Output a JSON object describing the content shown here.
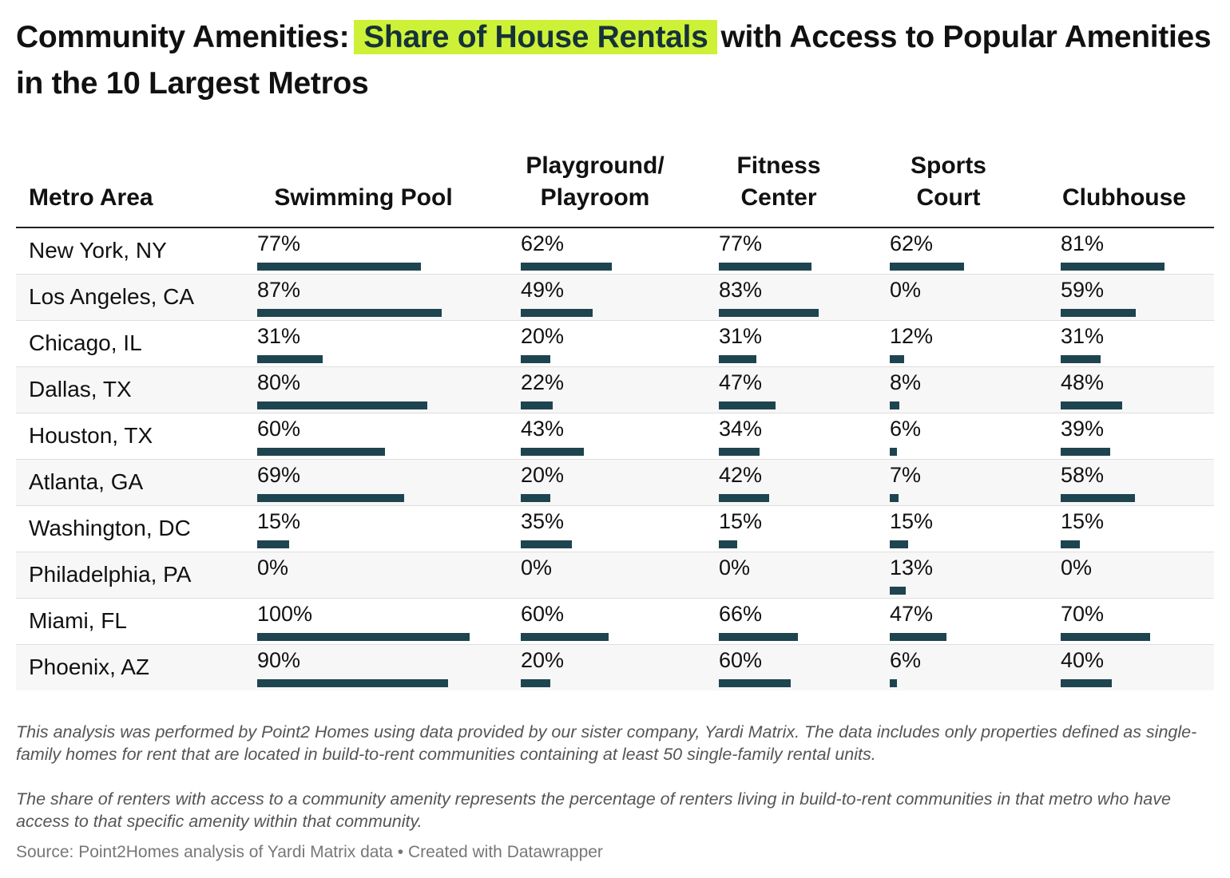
{
  "title": {
    "before": "Community Amenities:",
    "highlight": "Share of House Rentals",
    "after": "with Access to Popular Amenities in the 10 Largest Metros"
  },
  "colors": {
    "highlight": "#cdf136",
    "bar": "#1e4450"
  },
  "chart_data": {
    "type": "table",
    "columns": [
      "Metro Area",
      "Swimming Pool",
      "Playground/ Playroom",
      "Fitness Center",
      "Sports Court",
      "Clubhouse"
    ],
    "bar_scale_max": 100,
    "rows": [
      {
        "metro": "New York, NY",
        "values": [
          77,
          62,
          77,
          62,
          81
        ],
        "labels": [
          "77%",
          "62%",
          "77%",
          "62%",
          "81%"
        ]
      },
      {
        "metro": "Los Angeles, CA",
        "values": [
          87,
          49,
          83,
          0,
          59
        ],
        "labels": [
          "87%",
          "49%",
          "83%",
          "0%",
          "59%"
        ]
      },
      {
        "metro": "Chicago, IL",
        "values": [
          31,
          20,
          31,
          12,
          31
        ],
        "labels": [
          "31%",
          "20%",
          "31%",
          "12%",
          "31%"
        ]
      },
      {
        "metro": "Dallas, TX",
        "values": [
          80,
          22,
          47,
          8,
          48
        ],
        "labels": [
          "80%",
          "22%",
          "47%",
          "8%",
          "48%"
        ]
      },
      {
        "metro": "Houston, TX",
        "values": [
          60,
          43,
          34,
          6,
          39
        ],
        "labels": [
          "60%",
          "43%",
          "34%",
          "6%",
          "39%"
        ]
      },
      {
        "metro": "Atlanta, GA",
        "values": [
          69,
          20,
          42,
          7,
          58
        ],
        "labels": [
          "69%",
          "20%",
          "42%",
          "7%",
          "58%"
        ]
      },
      {
        "metro": "Washington, DC",
        "values": [
          15,
          35,
          15,
          15,
          15
        ],
        "labels": [
          "15%",
          "35%",
          "15%",
          "15%",
          "15%"
        ]
      },
      {
        "metro": "Philadelphia, PA",
        "values": [
          0,
          0,
          0,
          13,
          0
        ],
        "labels": [
          "0%",
          "0%",
          "0%",
          "13%",
          "0%"
        ]
      },
      {
        "metro": "Miami, FL",
        "values": [
          100,
          60,
          66,
          47,
          70
        ],
        "labels": [
          "100%",
          "60%",
          "66%",
          "47%",
          "70%"
        ]
      },
      {
        "metro": "Phoenix, AZ",
        "values": [
          90,
          20,
          60,
          6,
          40
        ],
        "labels": [
          "90%",
          "20%",
          "60%",
          "6%",
          "40%"
        ]
      }
    ]
  },
  "notes": [
    "This analysis was performed by Point2 Homes using data provided by our sister company, Yardi Matrix. The data includes only properties defined as single-family homes for rent that are located in build-to-rent communities containing at least 50 single-family rental units.",
    "The share of renters with access to a community amenity represents the percentage of renters living in build-to-rent communities in that metro who have access to that specific amenity within that community."
  ],
  "source": "Source: Point2Homes analysis of Yardi Matrix data • Created with Datawrapper"
}
